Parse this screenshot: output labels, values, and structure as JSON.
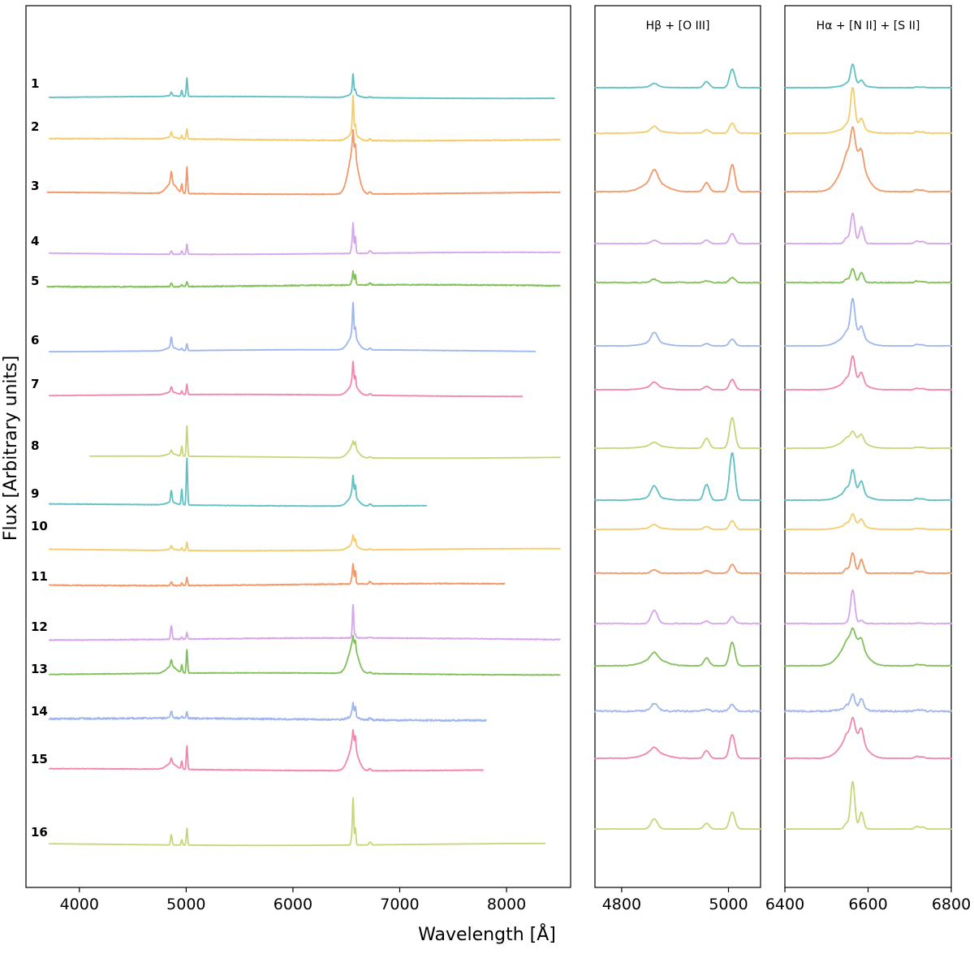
{
  "chart_data": {
    "type": "line",
    "xlabel": "Wavelength [Å]",
    "ylabel": "Flux [Arbitrary units]",
    "panels": [
      {
        "id": "full",
        "title": "",
        "xlim": [
          3500,
          8600
        ],
        "ticks": [
          4000,
          5000,
          6000,
          7000,
          8000
        ],
        "tick_labels": [
          "4000",
          "5000",
          "6000",
          "7000",
          "8000"
        ]
      },
      {
        "id": "hbeta",
        "title": "Hβ + [O III]",
        "xlim": [
          4750,
          5060
        ],
        "ticks": [
          4800,
          5000
        ],
        "tick_labels": [
          "4800",
          "5000"
        ]
      },
      {
        "id": "halpha",
        "title": "Hα + [N II] + [S II]",
        "xlim": [
          6400,
          6800
        ],
        "ticks": [
          6400,
          6600,
          6800
        ],
        "tick_labels": [
          "6400",
          "6600",
          "6800"
        ]
      }
    ],
    "lines": [
      {
        "name": "Hβ",
        "wave": 4861
      },
      {
        "name": "[O III] 4959",
        "wave": 4959
      },
      {
        "name": "[O III] 5007",
        "wave": 5007
      },
      {
        "name": "[N II] 6548",
        "wave": 6548
      },
      {
        "name": "Hα",
        "wave": 6563
      },
      {
        "name": "[N II] 6584",
        "wave": 6584
      },
      {
        "name": "[S II] 6717",
        "wave": 6717
      },
      {
        "name": "[S II] 6731",
        "wave": 6731
      }
    ],
    "series": [
      {
        "label": "1",
        "color": "#60c0c4",
        "range": [
          3720,
          8450
        ],
        "broad": 0.1,
        "oiii": 0.55,
        "hb": 0.1,
        "ha": 0.6,
        "nii": 0.15,
        "noise": 0.1
      },
      {
        "label": "2",
        "color": "#f3cc6c",
        "range": [
          3720,
          8500
        ],
        "broad": 0.2,
        "oiii": 0.3,
        "hb": 0.15,
        "ha": 1.15,
        "nii": 0.3,
        "noise": 0.2
      },
      {
        "label": "3",
        "color": "#f2986a",
        "range": [
          3700,
          8500
        ],
        "broad": 1.2,
        "oiii": 0.8,
        "hb": 0.35,
        "ha": 0.7,
        "nii": 0.4,
        "noise": 0.15
      },
      {
        "label": "4",
        "color": "#d6a5ea",
        "range": [
          3720,
          8500
        ],
        "broad": 0.0,
        "oiii": 0.3,
        "hb": 0.1,
        "ha": 0.9,
        "nii": 0.5,
        "noise": 0.12
      },
      {
        "label": "5",
        "color": "#82c05c",
        "range": [
          3700,
          8500
        ],
        "broad": 0.0,
        "oiii": 0.15,
        "hb": 0.1,
        "ha": 0.4,
        "nii": 0.3,
        "noise": 0.25
      },
      {
        "label": "6",
        "color": "#9fb6ec",
        "range": [
          3720,
          8270
        ],
        "broad": 0.4,
        "oiii": 0.2,
        "hb": 0.3,
        "ha": 1.0,
        "nii": 0.3,
        "noise": 0.08
      },
      {
        "label": "7",
        "color": "#f386ac",
        "range": [
          3720,
          8150
        ],
        "broad": 0.3,
        "oiii": 0.3,
        "hb": 0.15,
        "ha": 0.7,
        "nii": 0.3,
        "noise": 0.1
      },
      {
        "label": "8",
        "color": "#c6d678",
        "range": [
          4100,
          8500
        ],
        "broad": 0.3,
        "oiii": 0.9,
        "hb": 0.1,
        "ha": 0.2,
        "nii": 0.2,
        "noise": 0.05
      },
      {
        "label": "9",
        "color": "#60c0c4",
        "range": [
          3720,
          7250
        ],
        "broad": 0.3,
        "oiii": 1.4,
        "hb": 0.35,
        "ha": 0.6,
        "nii": 0.35,
        "noise": 0.12
      },
      {
        "label": "10",
        "color": "#f3cc6c",
        "range": [
          3720,
          8500
        ],
        "broad": 0.15,
        "oiii": 0.25,
        "hb": 0.1,
        "ha": 0.3,
        "nii": 0.2,
        "noise": 0.12
      },
      {
        "label": "11",
        "color": "#f2986a",
        "range": [
          3720,
          7980
        ],
        "broad": 0.0,
        "oiii": 0.25,
        "hb": 0.1,
        "ha": 0.6,
        "nii": 0.4,
        "noise": 0.22
      },
      {
        "label": "12",
        "color": "#d6a5ea",
        "range": [
          3720,
          8500
        ],
        "broad": 0.0,
        "oiii": 0.2,
        "hb": 0.4,
        "ha": 1.0,
        "nii": 0.1,
        "noise": 0.22
      },
      {
        "label": "13",
        "color": "#82c05c",
        "range": [
          3720,
          8500
        ],
        "broad": 0.8,
        "oiii": 0.7,
        "hb": 0.2,
        "ha": 0.3,
        "nii": 0.25,
        "noise": 0.15
      },
      {
        "label": "14",
        "color": "#9fb6ec",
        "range": [
          3720,
          7810
        ],
        "broad": 0.1,
        "oiii": 0.2,
        "hb": 0.2,
        "ha": 0.4,
        "nii": 0.3,
        "noise": 0.4
      },
      {
        "label": "15",
        "color": "#f386ac",
        "range": [
          3720,
          7780
        ],
        "broad": 0.7,
        "oiii": 0.7,
        "hb": 0.15,
        "ha": 0.5,
        "nii": 0.4,
        "noise": 0.15
      },
      {
        "label": "16",
        "color": "#c6d678",
        "range": [
          3720,
          8360
        ],
        "broad": 0.0,
        "oiii": 0.5,
        "hb": 0.3,
        "ha": 1.4,
        "nii": 0.5,
        "noise": 0.06
      }
    ]
  }
}
